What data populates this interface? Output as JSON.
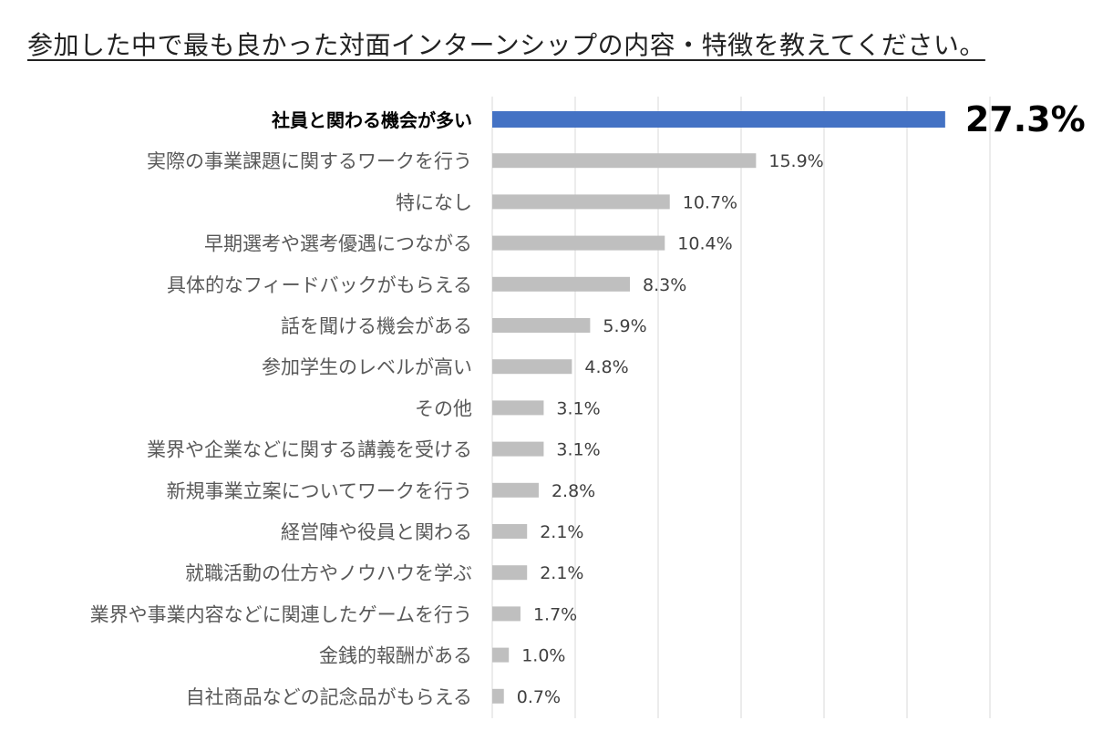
{
  "chart_data": {
    "type": "bar",
    "orientation": "horizontal",
    "title": "参加した中で最も良かった対面インターンシップの内容・特徴を教えてください。",
    "categories": [
      "社員と関わる機会が多い",
      "実際の事業課題に関するワークを行う",
      "特になし",
      "早期選考や選考優遇につながる",
      "具体的なフィードバックがもらえる",
      "話を聞ける機会がある",
      "参加学生のレベルが高い",
      "その他",
      "業界や企業などに関する講義を受ける",
      "新規事業立案についてワークを行う",
      "経営陣や役員と関わる",
      "就職活動の仕方やノウハウを学ぶ",
      "業界や事業内容などに関連したゲームを行う",
      "金銭的報酬がある",
      "自社商品などの記念品がもらえる"
    ],
    "values": [
      27.3,
      15.9,
      10.7,
      10.4,
      8.3,
      5.9,
      4.8,
      3.1,
      3.1,
      2.8,
      2.1,
      2.1,
      1.7,
      1.0,
      0.7
    ],
    "value_labels": [
      "27.3%",
      "15.9%",
      "10.7%",
      "10.4%",
      "8.3%",
      "5.9%",
      "4.8%",
      "3.1%",
      "3.1%",
      "2.8%",
      "2.1%",
      "2.1%",
      "1.7%",
      "1.0%",
      "0.7%"
    ],
    "highlight_index": 0,
    "xlim": [
      0,
      30
    ],
    "grid": true,
    "colors": {
      "highlight": "#4472c4",
      "bar": "#bfbfbf",
      "grid": "#d9d9d9",
      "label": "#595959",
      "highlight_label": "#000000"
    }
  }
}
